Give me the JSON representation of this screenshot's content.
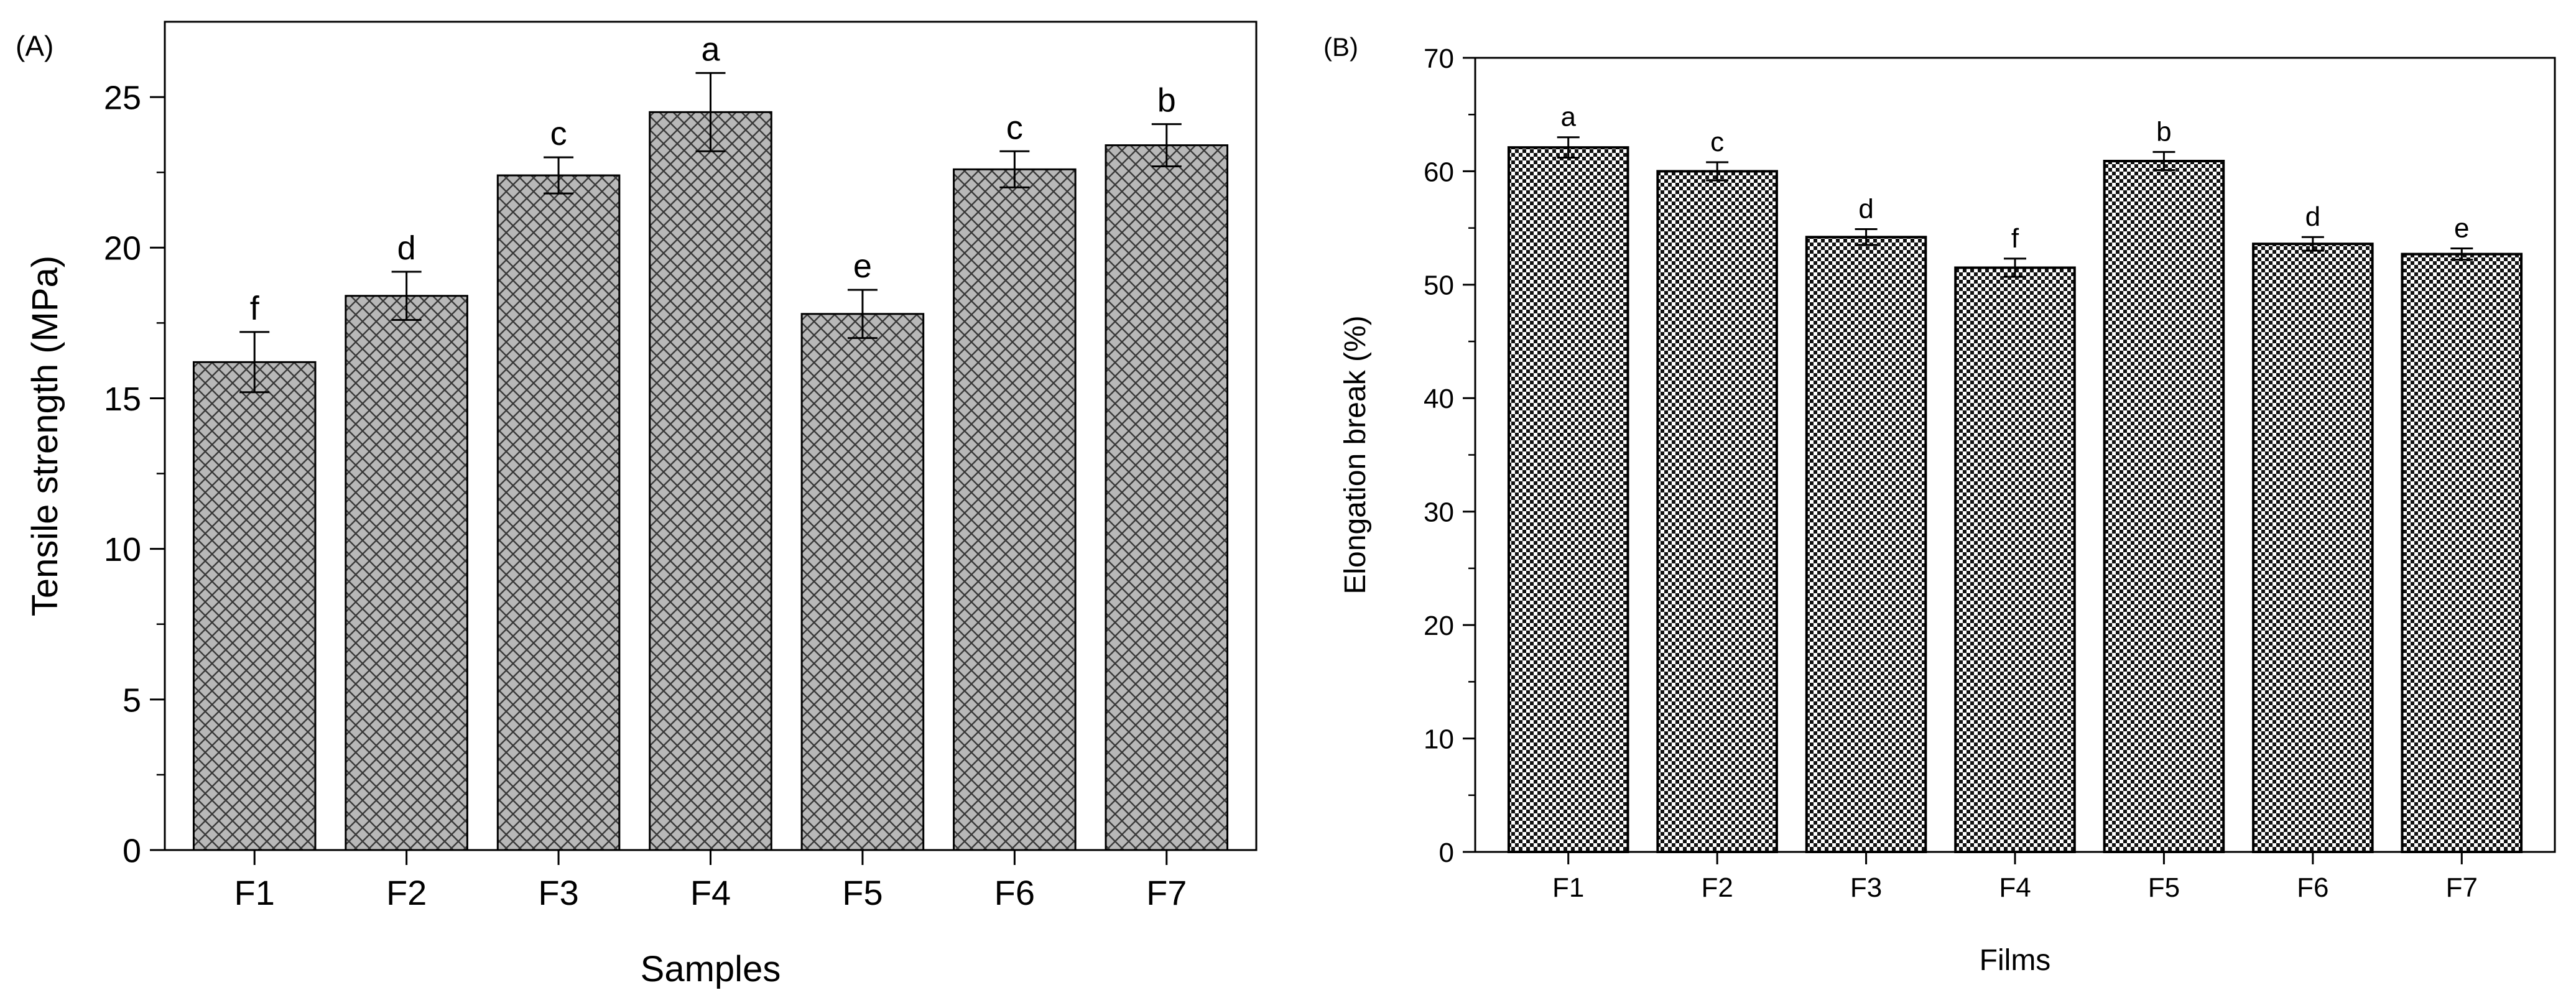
{
  "chart_data": [
    {
      "panel_label": "(A)",
      "type": "bar",
      "categories": [
        "F1",
        "F2",
        "F3",
        "F4",
        "F5",
        "F6",
        "F7"
      ],
      "values": [
        16.2,
        18.4,
        22.4,
        24.5,
        17.8,
        22.6,
        23.4
      ],
      "errors": [
        1.0,
        0.8,
        0.6,
        1.3,
        0.8,
        0.6,
        0.7
      ],
      "letters": [
        "f",
        "d",
        "c",
        "a",
        "e",
        "c",
        "b"
      ],
      "xlabel": "Samples",
      "ylabel": "Tensile strength (MPa)",
      "ylim": [
        0,
        27.5
      ],
      "yticks": [
        0,
        5,
        10,
        15,
        20,
        25
      ],
      "bar_fill": "#b8b8b8",
      "bar_pattern": "crosshatch",
      "grid": false
    },
    {
      "panel_label": "(B)",
      "type": "bar",
      "categories": [
        "F1",
        "F2",
        "F3",
        "F4",
        "F5",
        "F6",
        "F7"
      ],
      "values": [
        62.1,
        60.0,
        54.2,
        51.5,
        60.9,
        53.6,
        52.7
      ],
      "errors": [
        0.9,
        0.8,
        0.7,
        0.8,
        0.8,
        0.6,
        0.5
      ],
      "letters": [
        "a",
        "c",
        "d",
        "f",
        "b",
        "d",
        "e"
      ],
      "xlabel": "Films",
      "ylabel": "Elongation break (%)",
      "ylim": [
        0,
        70
      ],
      "yticks": [
        0,
        10,
        20,
        30,
        40,
        50,
        60,
        70
      ],
      "bar_fill": "#2b2b2b",
      "bar_pattern": "checker",
      "grid": false
    }
  ]
}
